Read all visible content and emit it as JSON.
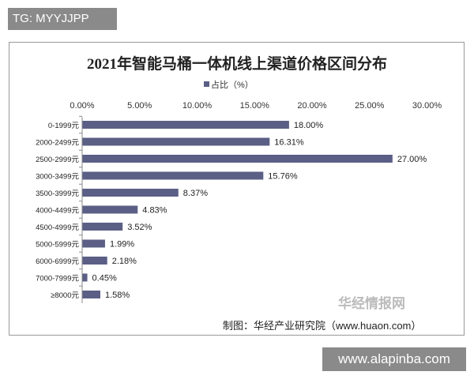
{
  "tag": "TG: MYYJJPP",
  "watermark": "www.alapinba.com",
  "logo_text": "华经情报网",
  "source": "制图：华经产业研究院（www.huaon.com）",
  "chart_data": {
    "type": "bar",
    "orientation": "horizontal",
    "title": "2021年智能马桶一体机线上渠道价格区间分布",
    "legend": [
      "占比（%）"
    ],
    "legend_position": "top",
    "categories": [
      "0-1999元",
      "2000-2499元",
      "2500-2999元",
      "3000-3499元",
      "3500-3999元",
      "4000-4499元",
      "4500-4999元",
      "5000-5999元",
      "6000-6999元",
      "7000-7999元",
      "≥8000元"
    ],
    "values": [
      18.0,
      16.31,
      27.0,
      15.76,
      8.37,
      4.83,
      3.52,
      1.99,
      2.18,
      0.45,
      1.58
    ],
    "value_labels": [
      "18.00%",
      "16.31%",
      "27.00%",
      "15.76%",
      "8.37%",
      "4.83%",
      "3.52%",
      "1.99%",
      "2.18%",
      "0.45%",
      "1.58%"
    ],
    "xticks": [
      "0.00%",
      "5.00%",
      "10.00%",
      "15.00%",
      "20.00%",
      "25.00%",
      "30.00%"
    ],
    "xlim": [
      0,
      30
    ],
    "grid": false,
    "color": "#5b5f86"
  }
}
